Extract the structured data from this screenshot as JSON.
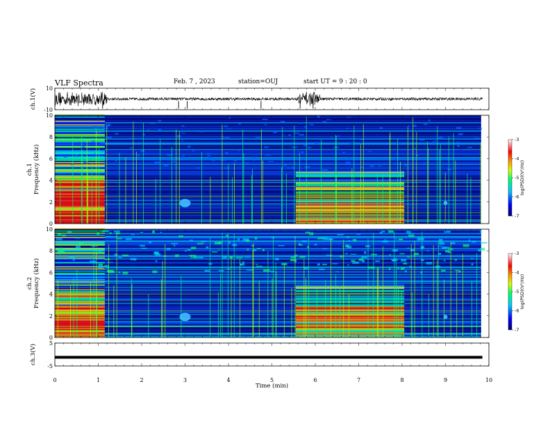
{
  "header": {
    "title": "VLF Spectra",
    "date": "Feb. 7 , 2023",
    "station": "station=OUJ",
    "start_ut": "start  UT =   9 : 20 : 0"
  },
  "chart_data": [
    {
      "type": "line",
      "panel": "ch1-waveform",
      "ylabel": "ch.1(V)",
      "ylim": [
        -10,
        10
      ],
      "yticks": [
        "10",
        "-10"
      ],
      "xlim": [
        0,
        10
      ],
      "bursts_min": [
        [
          0,
          1.2
        ],
        [
          5.6,
          6.1
        ]
      ],
      "spikes_min": [
        1.1,
        2.85,
        3.05,
        4.75,
        5.65,
        5.95
      ]
    },
    {
      "type": "heatmap",
      "panel": "ch1-spectrogram",
      "ylabel": "ch.1\nFrequency (kHz)",
      "ylim": [
        0,
        10
      ],
      "yticks": [
        "0",
        "2",
        "4",
        "6",
        "8",
        "10"
      ],
      "xlim": [
        0,
        10
      ],
      "colorbar": {
        "label": "log(PSD)(V²/Hz)",
        "range": [
          -7,
          -3
        ],
        "ticks": [
          "-3",
          "-4",
          "-5",
          "-6",
          "-7"
        ]
      },
      "active_segments_min": [
        [
          0,
          1.15
        ],
        [
          5.55,
          8.05
        ]
      ]
    },
    {
      "type": "heatmap",
      "panel": "ch2-spectrogram",
      "ylabel": "ch.2\nFrequency (kHz)",
      "ylim": [
        0,
        10
      ],
      "yticks": [
        "0",
        "2",
        "4",
        "6",
        "8",
        "10"
      ],
      "xlim": [
        0,
        10
      ],
      "colorbar": {
        "label": "log(PSD)(V²/Hz)",
        "range": [
          -7,
          -3
        ],
        "ticks": [
          "-3",
          "-4",
          "-5",
          "-6",
          "-7"
        ]
      },
      "active_segments_min": [
        [
          0,
          1.15
        ],
        [
          5.55,
          8.05
        ]
      ]
    },
    {
      "type": "line",
      "panel": "ch3-waveform",
      "ylabel": "ch.3(V)",
      "ylim": [
        -5,
        5
      ],
      "yticks": [
        "5",
        "-5"
      ],
      "xlim": [
        0,
        10
      ],
      "level_v": -1.2
    }
  ],
  "xaxis": {
    "label": "Time (min)",
    "ticks": [
      "0",
      "1",
      "2",
      "3",
      "4",
      "5",
      "6",
      "7",
      "8",
      "9",
      "10"
    ]
  }
}
